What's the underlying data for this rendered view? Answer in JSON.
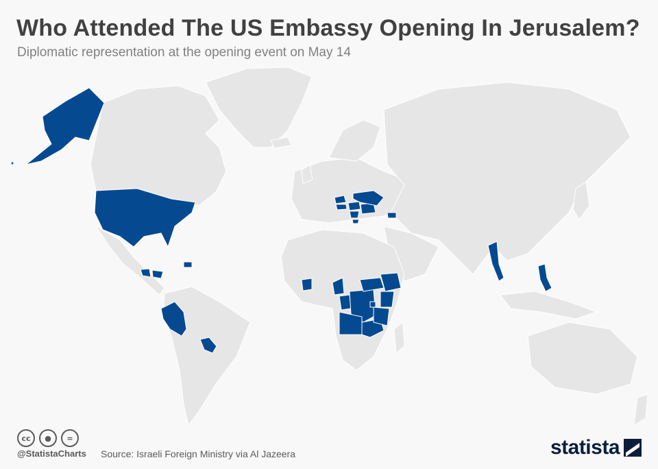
{
  "header": {
    "title": "Who Attended The US Embassy Opening In Jerusalem?",
    "subtitle": "Diplomatic representation at the opening event on May 14"
  },
  "map": {
    "land_color": "#e6e6e6",
    "border_color": "#ffffff",
    "highlight_color": "#054a91",
    "highlighted_regions": [
      "United States",
      "Alaska",
      "Guatemala",
      "Honduras",
      "Dominican Republic",
      "Peru",
      "Paraguay",
      "Hungary",
      "Czech Republic",
      "Austria",
      "Romania",
      "Ukraine",
      "Serbia",
      "Macedonia",
      "Georgia",
      "Ivory Coast",
      "Cameroon",
      "Congo",
      "DR Congo",
      "Angola",
      "Zambia",
      "South Sudan",
      "Ethiopia",
      "Kenya",
      "Tanzania",
      "Rwanda",
      "Myanmar",
      "Philippines"
    ]
  },
  "footer": {
    "license_icons": [
      "cc-icon",
      "attribution-icon",
      "no-derivatives-icon"
    ],
    "handle": "@StatistaCharts",
    "source": "Source: Israeli Foreign Ministry via Al Jazeera",
    "brand": "statista"
  }
}
